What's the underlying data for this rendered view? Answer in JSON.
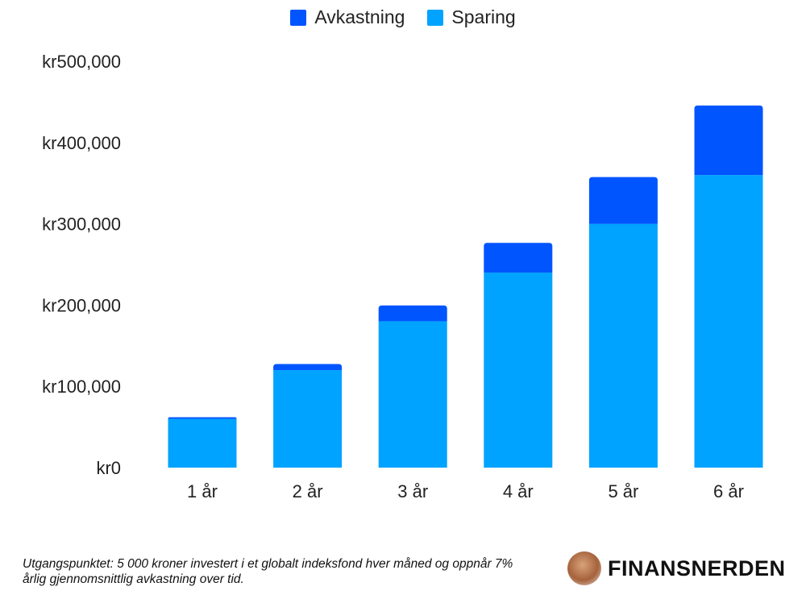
{
  "chart_data": {
    "type": "bar",
    "stacked": true,
    "categories": [
      "1 år",
      "2 år",
      "3 år",
      "4 år",
      "5 år",
      "6 år"
    ],
    "series": [
      {
        "name": "Sparing",
        "color": "#00A3FF",
        "values": [
          60000,
          120000,
          180000,
          240000,
          300000,
          360000
        ]
      },
      {
        "name": "Avkastning",
        "color": "#0055FF",
        "values": [
          2000,
          7500,
          19500,
          36500,
          57500,
          85500
        ]
      }
    ],
    "ylim": [
      0,
      500000
    ],
    "yticks": [
      0,
      100000,
      200000,
      300000,
      400000,
      500000
    ],
    "ytick_labels": [
      "kr0",
      "kr100,000",
      "kr200,000",
      "kr300,000",
      "kr400,000",
      "kr500,000"
    ],
    "legend": [
      "Avkastning",
      "Sparing"
    ],
    "legend_placement": "top-center",
    "grid": false
  },
  "footnote": "Utgangspunktet: 5 000 kroner investert i et globalt indeksfond hver måned og oppnår 7% årlig gjennomsnittlig avkastning over tid.",
  "brand": "FINANSNERDEN"
}
